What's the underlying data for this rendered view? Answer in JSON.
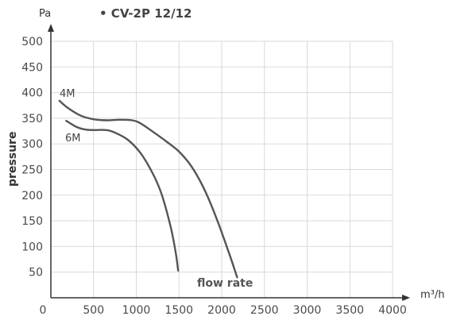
{
  "chart_data": {
    "type": "line",
    "title": "• CV-2P 12/12",
    "xlabel": "m³/h",
    "ylabel": "pressure",
    "y_unit": "Pa",
    "xlim": [
      0,
      4000
    ],
    "ylim": [
      0,
      500
    ],
    "x_ticks": [
      0,
      500,
      1000,
      1500,
      2000,
      2500,
      3000,
      3500,
      4000
    ],
    "y_ticks": [
      50,
      100,
      150,
      200,
      250,
      300,
      350,
      400,
      450,
      500
    ],
    "grid": true,
    "annotation": "flow rate",
    "series": [
      {
        "name": "4M",
        "color": "#555555",
        "points": [
          [
            100,
            384
          ],
          [
            200,
            370
          ],
          [
            350,
            355
          ],
          [
            500,
            348
          ],
          [
            650,
            346
          ],
          [
            800,
            347
          ],
          [
            950,
            346
          ],
          [
            1050,
            340
          ],
          [
            1200,
            323
          ],
          [
            1350,
            305
          ],
          [
            1500,
            285
          ],
          [
            1650,
            255
          ],
          [
            1800,
            210
          ],
          [
            1950,
            150
          ],
          [
            2100,
            80
          ],
          [
            2180,
            40
          ]
        ]
      },
      {
        "name": "6M",
        "color": "#555555",
        "points": [
          [
            180,
            345
          ],
          [
            300,
            333
          ],
          [
            400,
            328
          ],
          [
            500,
            327
          ],
          [
            650,
            327
          ],
          [
            750,
            322
          ],
          [
            900,
            308
          ],
          [
            1050,
            282
          ],
          [
            1200,
            240
          ],
          [
            1300,
            200
          ],
          [
            1400,
            140
          ],
          [
            1460,
            90
          ],
          [
            1490,
            53
          ]
        ]
      }
    ]
  },
  "colors": {
    "axis": "#333333",
    "grid": "#d9d9d9",
    "curve": "#555555"
  }
}
